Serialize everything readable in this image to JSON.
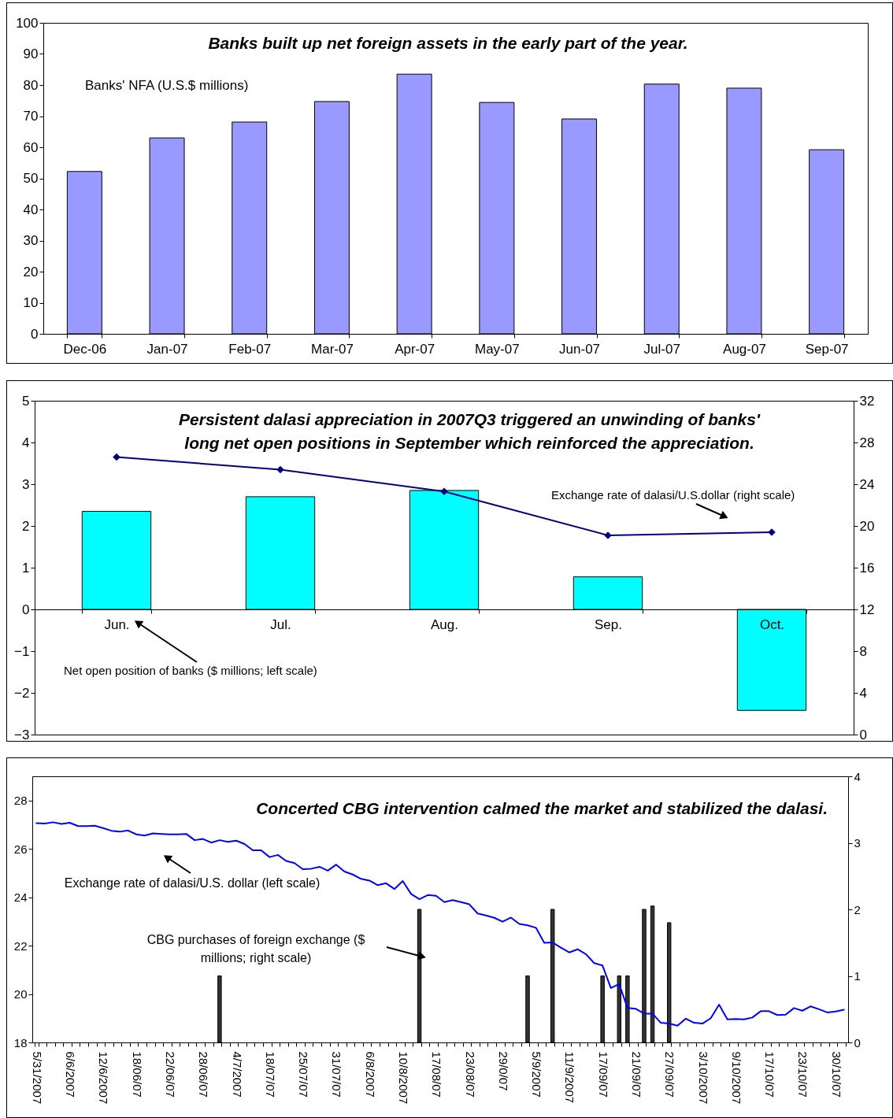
{
  "chart_data": [
    {
      "type": "bar",
      "title": "Banks built up net foreign assets in the early part of the year.",
      "annotations": [
        "Banks' NFA (U.S.$ millions)"
      ],
      "categories": [
        "Dec-06",
        "Jan-07",
        "Feb-07",
        "Mar-07",
        "Apr-07",
        "May-07",
        "Jun-07",
        "Jul-07",
        "Aug-07",
        "Sep-07"
      ],
      "values": [
        52.2,
        63.0,
        68.1,
        74.7,
        83.5,
        74.4,
        69.1,
        80.3,
        79.0,
        59.2
      ],
      "color": "#9999ff",
      "ylim": [
        0,
        100
      ],
      "yticks": [
        0,
        10,
        20,
        30,
        40,
        50,
        60,
        70,
        80,
        90,
        100
      ]
    },
    {
      "type": "bar",
      "title": "Persistent dalasi appreciation in 2007Q3 triggered an unwinding of banks' long net open positions in September which reinforced the appreciation.",
      "annotations": [
        "Exchange rate of dalasi/U.S.dollar (right scale)",
        "Net open position of banks ($ millions; left scale)"
      ],
      "categories": [
        "Jun.",
        "Jul.",
        "Aug.",
        "Sep.",
        "Oct."
      ],
      "series": [
        {
          "type": "bar",
          "color": "#00ffff",
          "values": [
            2.35,
            2.7,
            2.85,
            0.78,
            -2.42
          ]
        },
        {
          "type": "line",
          "axis": "y2",
          "color": "#000080",
          "values": [
            26.6,
            25.4,
            23.3,
            19.1,
            19.4
          ]
        }
      ],
      "marker": "diamond",
      "ylim": [
        -3,
        5
      ],
      "yticks": [
        -3,
        -2,
        -1,
        0,
        1,
        2,
        3,
        4,
        5
      ],
      "y2lim": [
        0,
        32
      ],
      "y2ticks": [
        0,
        4,
        8,
        12,
        16,
        20,
        24,
        28,
        32
      ]
    },
    {
      "type": "bar",
      "title": "Concerted CBG intervention calmed the market and stabilized the dalasi.",
      "annotations": [
        "Exchange rate of dalasi/U.S. dollar (left scale)",
        "CBG purchases of foreign exchange ($ millions; right scale)"
      ],
      "categories": [
        "5/31/2007",
        null,
        null,
        null,
        "6/6/2007",
        null,
        null,
        null,
        "12/6/2007",
        null,
        null,
        null,
        "18/06/07",
        null,
        null,
        null,
        "22/06/07",
        null,
        null,
        null,
        "28/06/07",
        null,
        null,
        null,
        "4/7/2007",
        null,
        null,
        null,
        "18/07/07",
        null,
        null,
        null,
        "25/07/07",
        null,
        null,
        null,
        "31/07/07",
        null,
        null,
        null,
        "6/8/2007",
        null,
        null,
        null,
        "10/8/2007",
        null,
        null,
        null,
        "17/08/07",
        null,
        null,
        null,
        "23/08/07",
        null,
        null,
        null,
        "29/0/07",
        null,
        null,
        null,
        "5/9/2007",
        null,
        null,
        null,
        "11/9/2007",
        null,
        null,
        null,
        "17/09/07",
        null,
        null,
        null,
        "21/09/07",
        null,
        null,
        null,
        "27/09/07",
        null,
        null,
        null,
        "3/10/2007",
        null,
        null,
        null,
        "9/10/2007",
        null,
        null,
        null,
        "17/10/07",
        null,
        null,
        null,
        "23/10/07",
        null,
        null,
        null,
        "30/10/07",
        null
      ],
      "series": [
        {
          "type": "bar",
          "axis": "y2",
          "color": "#333333",
          "values": [
            null,
            null,
            null,
            null,
            null,
            null,
            null,
            null,
            null,
            null,
            null,
            null,
            null,
            null,
            null,
            null,
            null,
            null,
            null,
            null,
            null,
            null,
            1,
            null,
            null,
            null,
            null,
            null,
            null,
            null,
            null,
            null,
            null,
            null,
            null,
            null,
            null,
            null,
            null,
            null,
            null,
            null,
            null,
            null,
            null,
            null,
            2,
            null,
            null,
            null,
            null,
            null,
            null,
            null,
            null,
            null,
            null,
            null,
            null,
            1,
            null,
            null,
            2,
            null,
            null,
            null,
            null,
            null,
            1,
            null,
            1,
            1,
            null,
            2,
            2.05,
            null,
            1.8,
            null,
            null,
            null,
            null,
            null,
            null,
            null,
            null,
            null,
            null,
            null,
            null,
            null,
            null,
            null,
            null,
            null,
            null,
            null,
            null,
            null
          ]
        },
        {
          "type": "line",
          "color": "#0000ff",
          "values": [
            27.06,
            27.05,
            27.1,
            27.03,
            27.08,
            26.94,
            26.94,
            26.96,
            26.86,
            26.75,
            26.71,
            26.76,
            26.6,
            26.55,
            26.64,
            26.62,
            26.6,
            26.6,
            26.62,
            26.36,
            26.41,
            26.26,
            26.36,
            26.29,
            26.34,
            26.2,
            25.94,
            25.94,
            25.66,
            25.75,
            25.5,
            25.41,
            25.16,
            25.18,
            25.26,
            25.1,
            25.35,
            25.06,
            24.94,
            24.76,
            24.69,
            24.5,
            24.58,
            24.34,
            24.67,
            24.14,
            23.92,
            24.09,
            24.06,
            23.8,
            23.88,
            23.8,
            23.71,
            23.33,
            23.25,
            23.15,
            22.99,
            23.16,
            22.9,
            22.84,
            22.74,
            22.12,
            22.13,
            21.92,
            21.72,
            21.85,
            21.65,
            21.28,
            21.18,
            20.25,
            20.41,
            19.42,
            19.39,
            19.19,
            19.19,
            18.81,
            18.78,
            18.69,
            18.98,
            18.81,
            18.78,
            19.0,
            19.56,
            18.95,
            18.97,
            18.95,
            19.03,
            19.29,
            19.29,
            19.13,
            19.15,
            19.42,
            19.31,
            19.49,
            19.37,
            19.24,
            19.28,
            19.35
          ]
        }
      ],
      "ylim": [
        18,
        29
      ],
      "yticks": [
        18,
        20,
        22,
        24,
        26,
        28
      ],
      "y2lim": [
        0,
        4
      ],
      "y2ticks": [
        0,
        1,
        2,
        3,
        4
      ]
    }
  ]
}
